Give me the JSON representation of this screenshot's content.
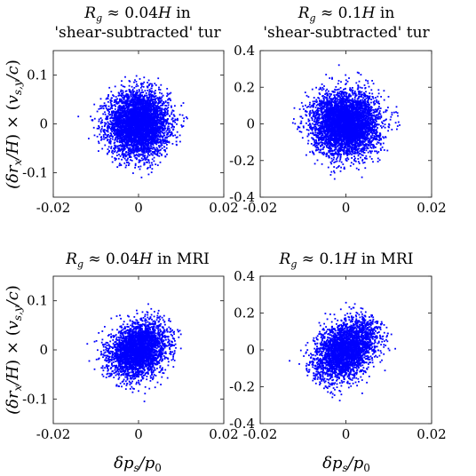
{
  "chart_data": [
    {
      "type": "scatter",
      "title_lines": [
        "Rg ≈ 0.04H in",
        "'shear-subtracted' tur"
      ],
      "xlabel": "",
      "ylabel": "(δrx/H) × (vs,y/c)",
      "xlim": [
        -0.02,
        0.02
      ],
      "ylim": [
        -0.15,
        0.15
      ],
      "xticks": [
        "-0.02",
        "0",
        "0.02"
      ],
      "yticks": [
        "0.1",
        "0",
        "-0.1"
      ],
      "ytick_values": [
        0.1,
        0,
        -0.1
      ],
      "marker_color": "#0000ff",
      "cloud": {
        "shape": "diamond",
        "x_extent": 0.0175,
        "y_extent": 0.128,
        "x_spread": 0.0035,
        "y_spread": 0.032,
        "correlation": 0.0,
        "points": 4500
      }
    },
    {
      "type": "scatter",
      "title_lines": [
        "Rg ≈ 0.1H in",
        "'shear-subtracted' tur"
      ],
      "xlabel": "",
      "ylabel": "",
      "xlim": [
        -0.02,
        0.02
      ],
      "ylim": [
        -0.4,
        0.4
      ],
      "xticks": [
        "-0.02",
        "0",
        "0.02"
      ],
      "yticks": [
        "0.4",
        "0.2",
        "0",
        "-0.2",
        "-0.4"
      ],
      "ytick_values": [
        0.4,
        0.2,
        0,
        -0.2,
        -0.4
      ],
      "marker_color": "#0000ff",
      "cloud": {
        "shape": "diamond",
        "x_extent": 0.0175,
        "y_extent": 0.38,
        "x_spread": 0.0038,
        "y_spread": 0.085,
        "correlation": 0.0,
        "points": 4500
      }
    },
    {
      "type": "scatter",
      "title_lines": [
        "Rg ≈ 0.04H in MRI"
      ],
      "xlabel": "δps/p0",
      "ylabel": "(δrx/H) × (vs,y/c)",
      "xlim": [
        -0.02,
        0.02
      ],
      "ylim": [
        -0.15,
        0.15
      ],
      "xticks": [
        "-0.02",
        "0",
        "0.02"
      ],
      "yticks": [
        "0.1",
        "0",
        "-0.1"
      ],
      "ytick_values": [
        0.1,
        0,
        -0.1
      ],
      "marker_color": "#0000ff",
      "cloud": {
        "shape": "diamond",
        "x_extent": 0.0155,
        "y_extent": 0.12,
        "x_spread": 0.0033,
        "y_spread": 0.028,
        "correlation": 0.25,
        "points": 3200
      }
    },
    {
      "type": "scatter",
      "title_lines": [
        "Rg ≈ 0.1H in MRI"
      ],
      "xlabel": "δps/p0",
      "ylabel": "",
      "xlim": [
        -0.02,
        0.02
      ],
      "ylim": [
        -0.4,
        0.4
      ],
      "xticks": [
        "-0.02",
        "0",
        "0.02"
      ],
      "yticks": [
        "0.4",
        "0.2",
        "0",
        "-0.2",
        "-0.4"
      ],
      "ytick_values": [
        0.4,
        0.2,
        0,
        -0.2,
        -0.4
      ],
      "marker_color": "#0000ff",
      "cloud": {
        "shape": "diamond",
        "x_extent": 0.017,
        "y_extent": 0.32,
        "x_spread": 0.0037,
        "y_spread": 0.085,
        "correlation": 0.45,
        "points": 3000
      }
    }
  ]
}
